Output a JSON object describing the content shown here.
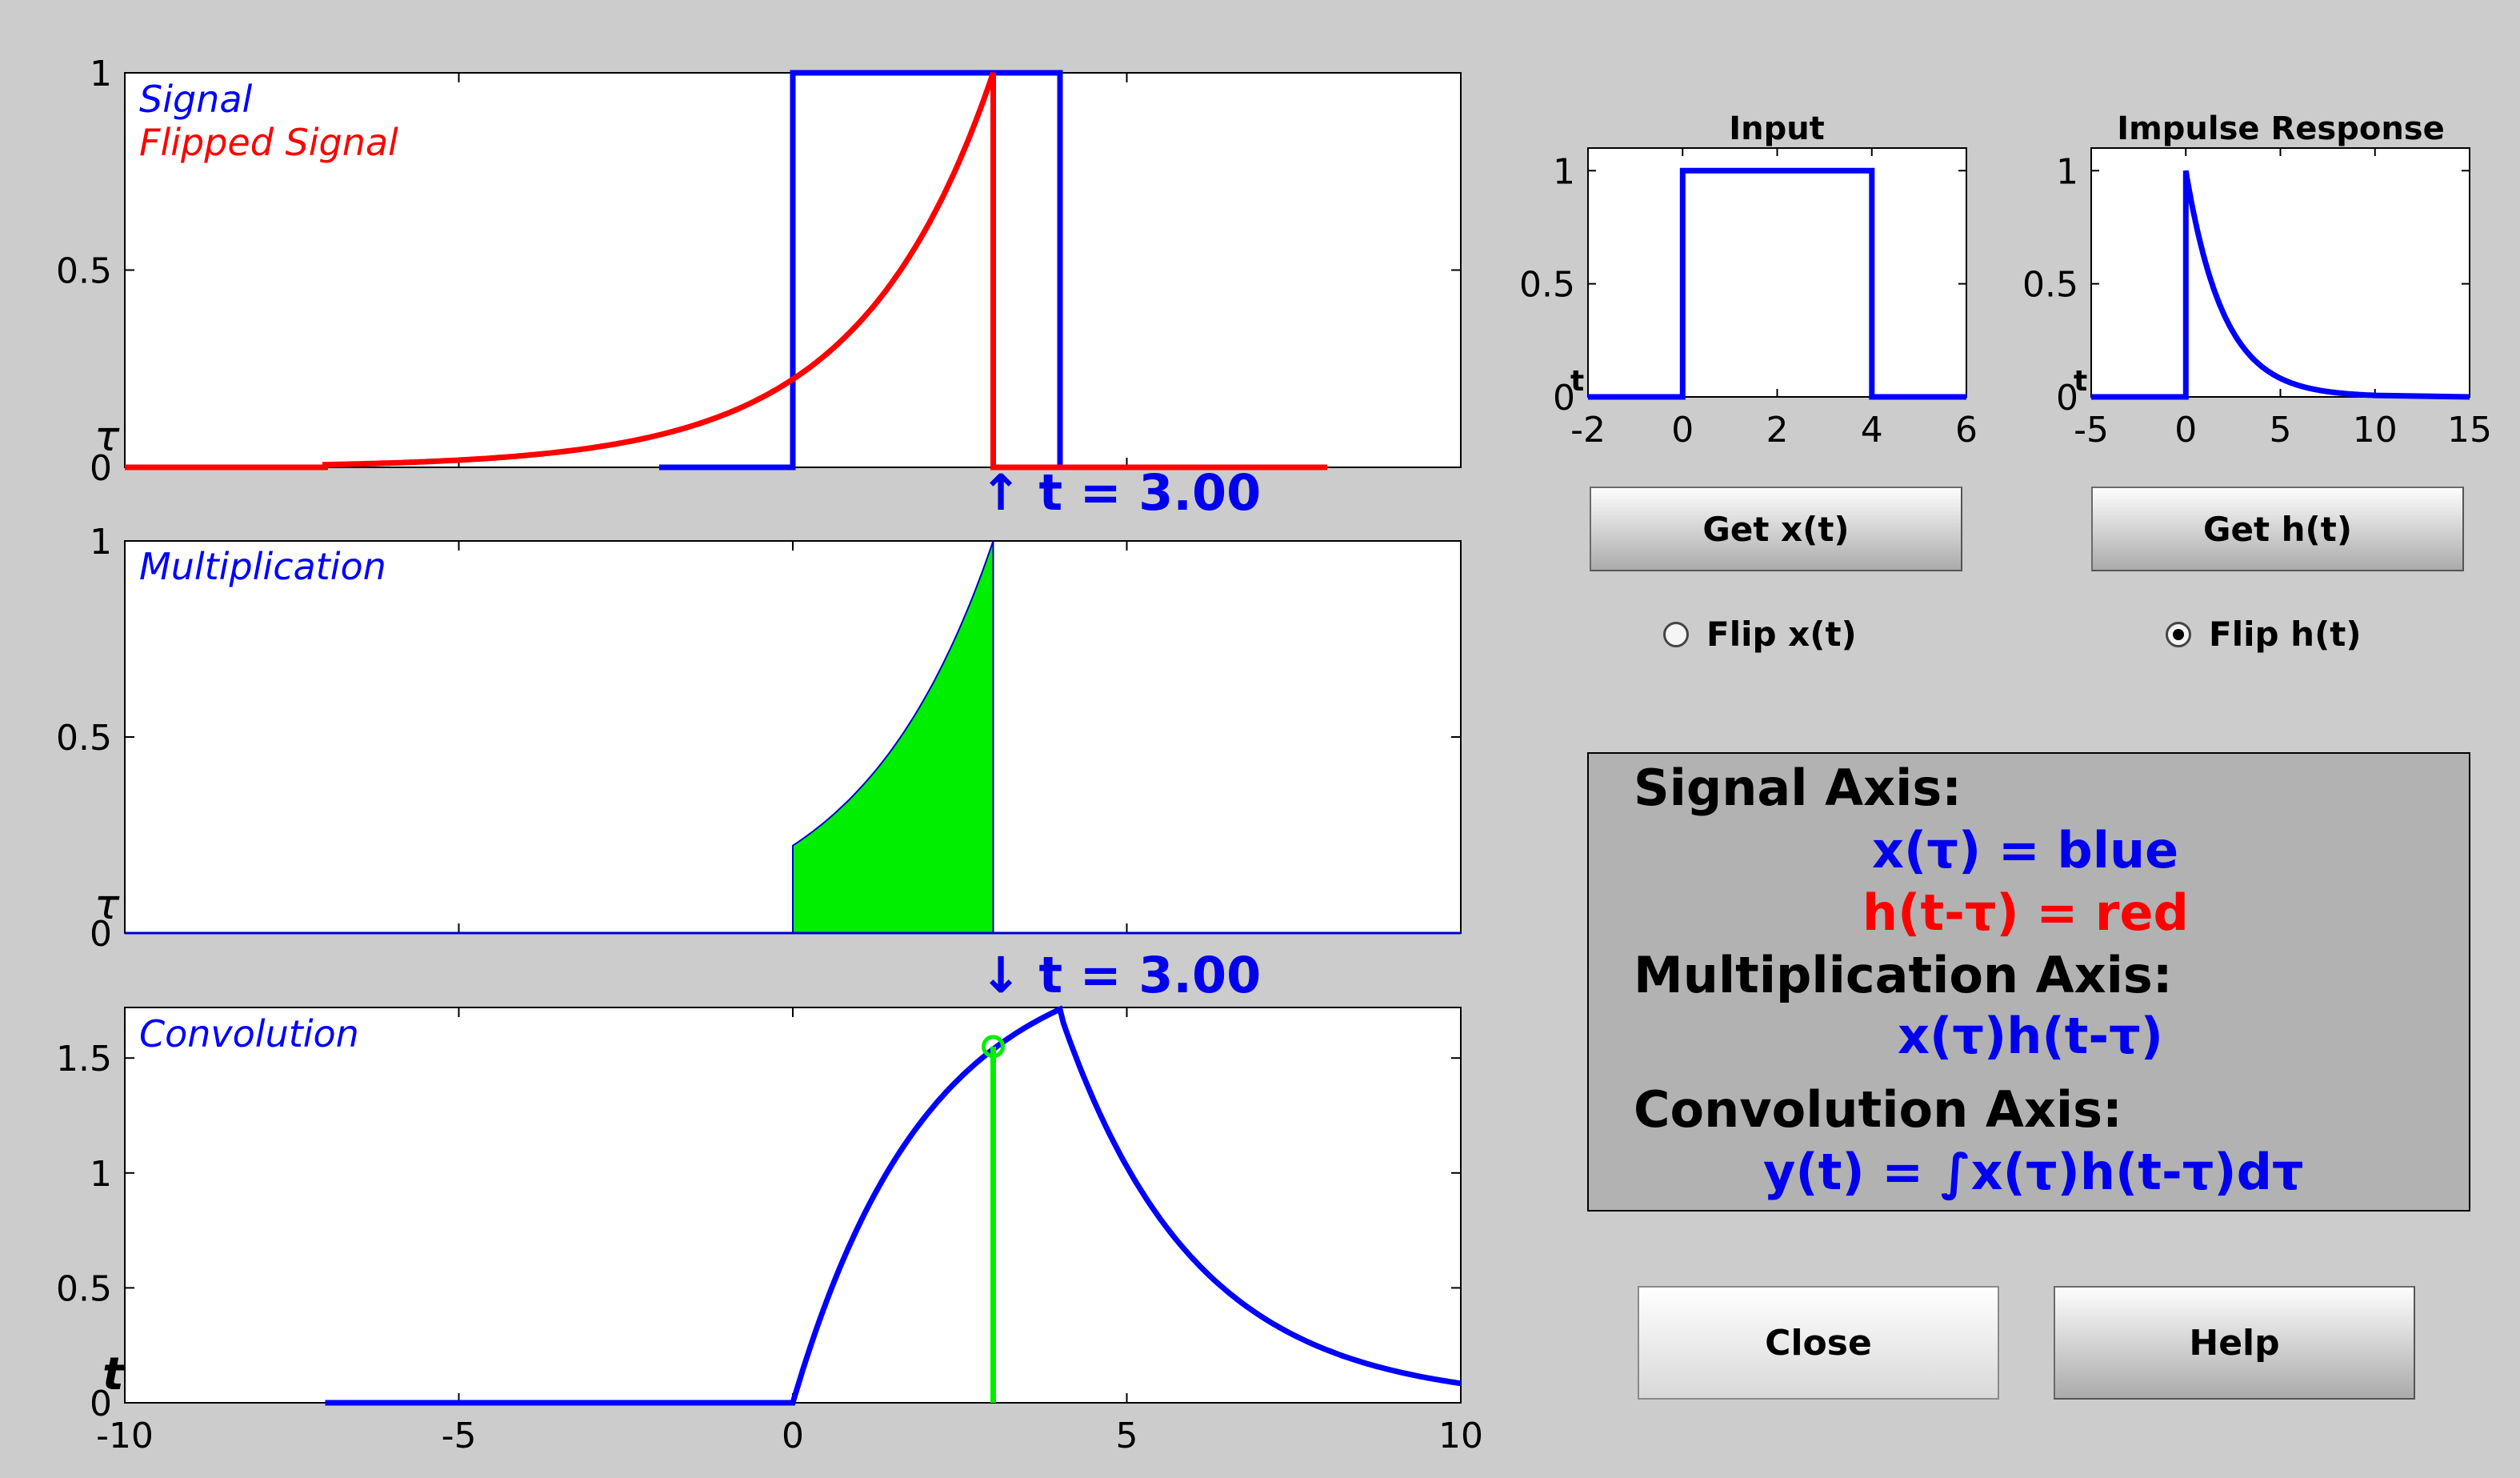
{
  "main": {
    "signal_label": "Signal",
    "flipped_label": "Flipped Signal",
    "multiplication_label": "Multiplication",
    "convolution_label": "Convolution",
    "tau_symbol": "τ",
    "t_symbol": "t",
    "t_marker_up": "↑ t = 3.00",
    "t_marker_down": "↓ t = 3.00",
    "x_ticks": [
      "-10",
      "-5",
      "0",
      "5",
      "10"
    ],
    "signal_y_ticks": [
      "0",
      "0.5",
      "1"
    ],
    "mult_y_ticks": [
      "0",
      "0.5",
      "1"
    ],
    "conv_y_ticks": [
      "0",
      "0.5",
      "1",
      "1.5"
    ]
  },
  "input_panel": {
    "title": "Input",
    "x_ticks": [
      "-2",
      "0",
      "2",
      "4",
      "6"
    ],
    "y_ticks": [
      "0",
      "0.5",
      "1"
    ],
    "t_symbol": "t"
  },
  "impulse_panel": {
    "title": "Impulse Response",
    "x_ticks": [
      "-5",
      "0",
      "5",
      "10",
      "15"
    ],
    "y_ticks": [
      "0",
      "0.5",
      "1"
    ],
    "t_symbol": "t"
  },
  "controls": {
    "get_x_label": "Get x(t)",
    "get_h_label": "Get h(t)",
    "flip_x_label": "Flip x(t)",
    "flip_h_label": "Flip h(t)",
    "flip_x_selected": false,
    "flip_h_selected": true,
    "close_label": "Close",
    "help_label": "Help"
  },
  "legend": {
    "signal_axis": "Signal Axis:",
    "x_tau": "x(τ) = blue",
    "h_t_tau": "h(t-τ) = red",
    "mult_axis": "Multiplication Axis:",
    "product": "x(τ)h(t-τ)",
    "conv_axis": "Convolution Axis:",
    "conv_formula": "y(t) = ∫x(τ)h(t-τ)dτ"
  },
  "colors": {
    "signal": "#0000ff",
    "flipped": "#ff0000",
    "product_fill": "#00ee00",
    "marker": "#00ee00",
    "label_blue": "#0000ee"
  },
  "chart_data": [
    {
      "type": "line",
      "name": "signal-axis",
      "xlim": [
        -10,
        10
      ],
      "ylim": [
        0,
        1
      ],
      "series": [
        {
          "name": "Signal",
          "x": [
            -2,
            0,
            0,
            4,
            4,
            8
          ],
          "values": [
            0,
            0,
            1,
            1,
            0,
            0
          ]
        },
        {
          "name": "Flipped Signal",
          "x": [
            -10,
            -7,
            -5,
            -3,
            -1,
            0,
            1,
            2,
            3,
            3,
            8
          ],
          "values": [
            0,
            0.005,
            0.018,
            0.05,
            0.14,
            0.22,
            0.37,
            0.61,
            1,
            0,
            0
          ]
        }
      ],
      "t": 3.0
    },
    {
      "type": "area",
      "name": "multiplication-axis",
      "xlim": [
        -10,
        10
      ],
      "ylim": [
        0,
        1
      ],
      "series": [
        {
          "name": "Multiplication",
          "x": [
            0,
            0.5,
            1,
            1.5,
            2,
            2.5,
            3
          ],
          "values": [
            0.22,
            0.29,
            0.37,
            0.47,
            0.61,
            0.78,
            1
          ]
        }
      ]
    },
    {
      "type": "line",
      "name": "convolution-axis",
      "xlim": [
        -10,
        10
      ],
      "ylim": [
        0,
        1.72
      ],
      "series": [
        {
          "name": "Convolution",
          "x": [
            -7,
            0,
            1,
            2,
            3,
            4,
            5,
            6,
            7,
            8,
            9,
            10
          ],
          "values": [
            0,
            0,
            0.63,
            1.15,
            1.55,
            1.72,
            1.2,
            0.78,
            0.5,
            0.3,
            0.18,
            0.09
          ]
        }
      ],
      "marker": {
        "x": 3,
        "y": 1.55
      }
    },
    {
      "type": "line",
      "name": "input",
      "title": "Input",
      "xlim": [
        -2,
        6
      ],
      "ylim": [
        0,
        1.1
      ],
      "series": [
        {
          "x": [
            -2,
            0,
            0,
            4,
            4,
            6
          ],
          "values": [
            0,
            0,
            1,
            1,
            0,
            0
          ]
        }
      ]
    },
    {
      "type": "line",
      "name": "impulse-response",
      "title": "Impulse Response",
      "xlim": [
        -5,
        15
      ],
      "ylim": [
        0,
        1.1
      ],
      "series": [
        {
          "x": [
            -5,
            0,
            0,
            0.5,
            1,
            2,
            3,
            4,
            5,
            7,
            10,
            15
          ],
          "values": [
            0,
            0,
            1,
            0.61,
            0.37,
            0.14,
            0.05,
            0.018,
            0.007,
            0.001,
            0,
            0
          ]
        }
      ]
    }
  ]
}
